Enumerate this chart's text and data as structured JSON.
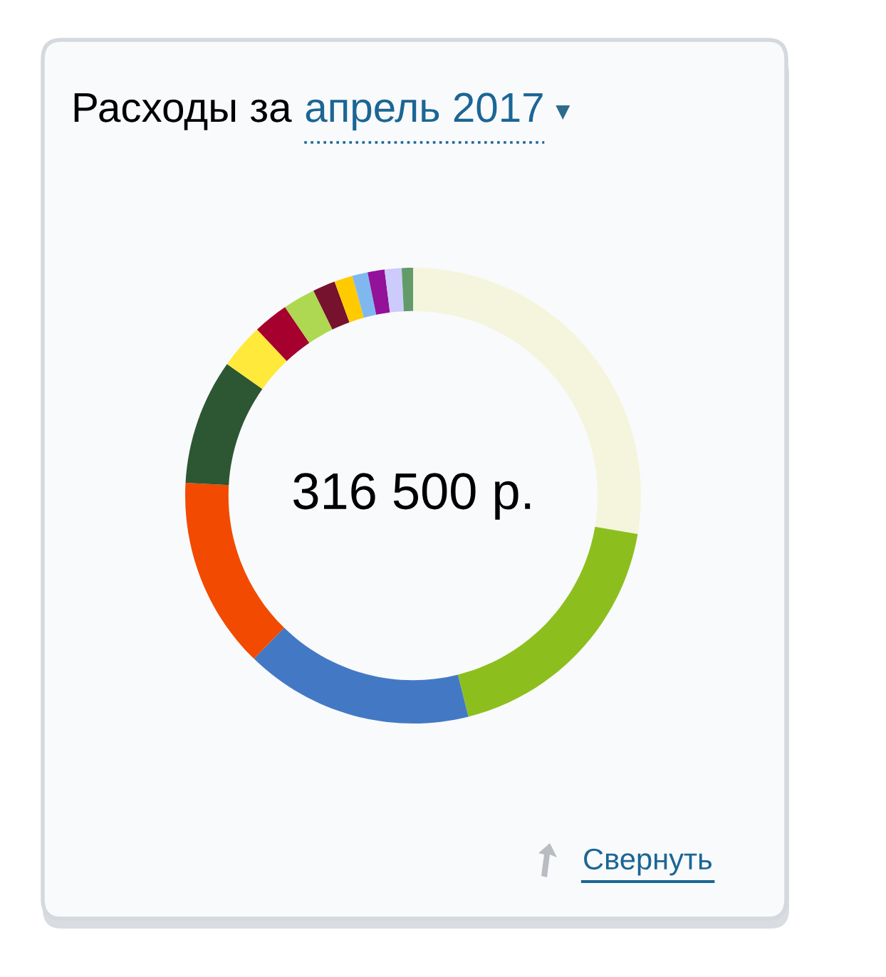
{
  "chart_data": {
    "type": "donut",
    "title": "Расходы за",
    "subtitle": "апрель 2017",
    "categories": [
      null,
      null,
      null,
      null,
      null,
      null,
      null,
      null,
      null,
      null,
      null,
      null,
      null,
      null
    ],
    "values": [
      27.7,
      18.4,
      16.2,
      13.6,
      8.9,
      3.2,
      2.5,
      2.3,
      1.6,
      1.3,
      1.1,
      1.2,
      1.2,
      0.8
    ],
    "colors": [
      "#f4f5dc",
      "#8cbf1e",
      "#4379c4",
      "#f24a00",
      "#2d5733",
      "#ffe93b",
      "#a6002e",
      "#afd852",
      "#76122e",
      "#ffcb00",
      "#7fb8ef",
      "#92129a",
      "#cccbfb",
      "#629b69"
    ],
    "annotations": [
      "316 500 р.",
      "Свернуть"
    ],
    "legend": false
  }
}
